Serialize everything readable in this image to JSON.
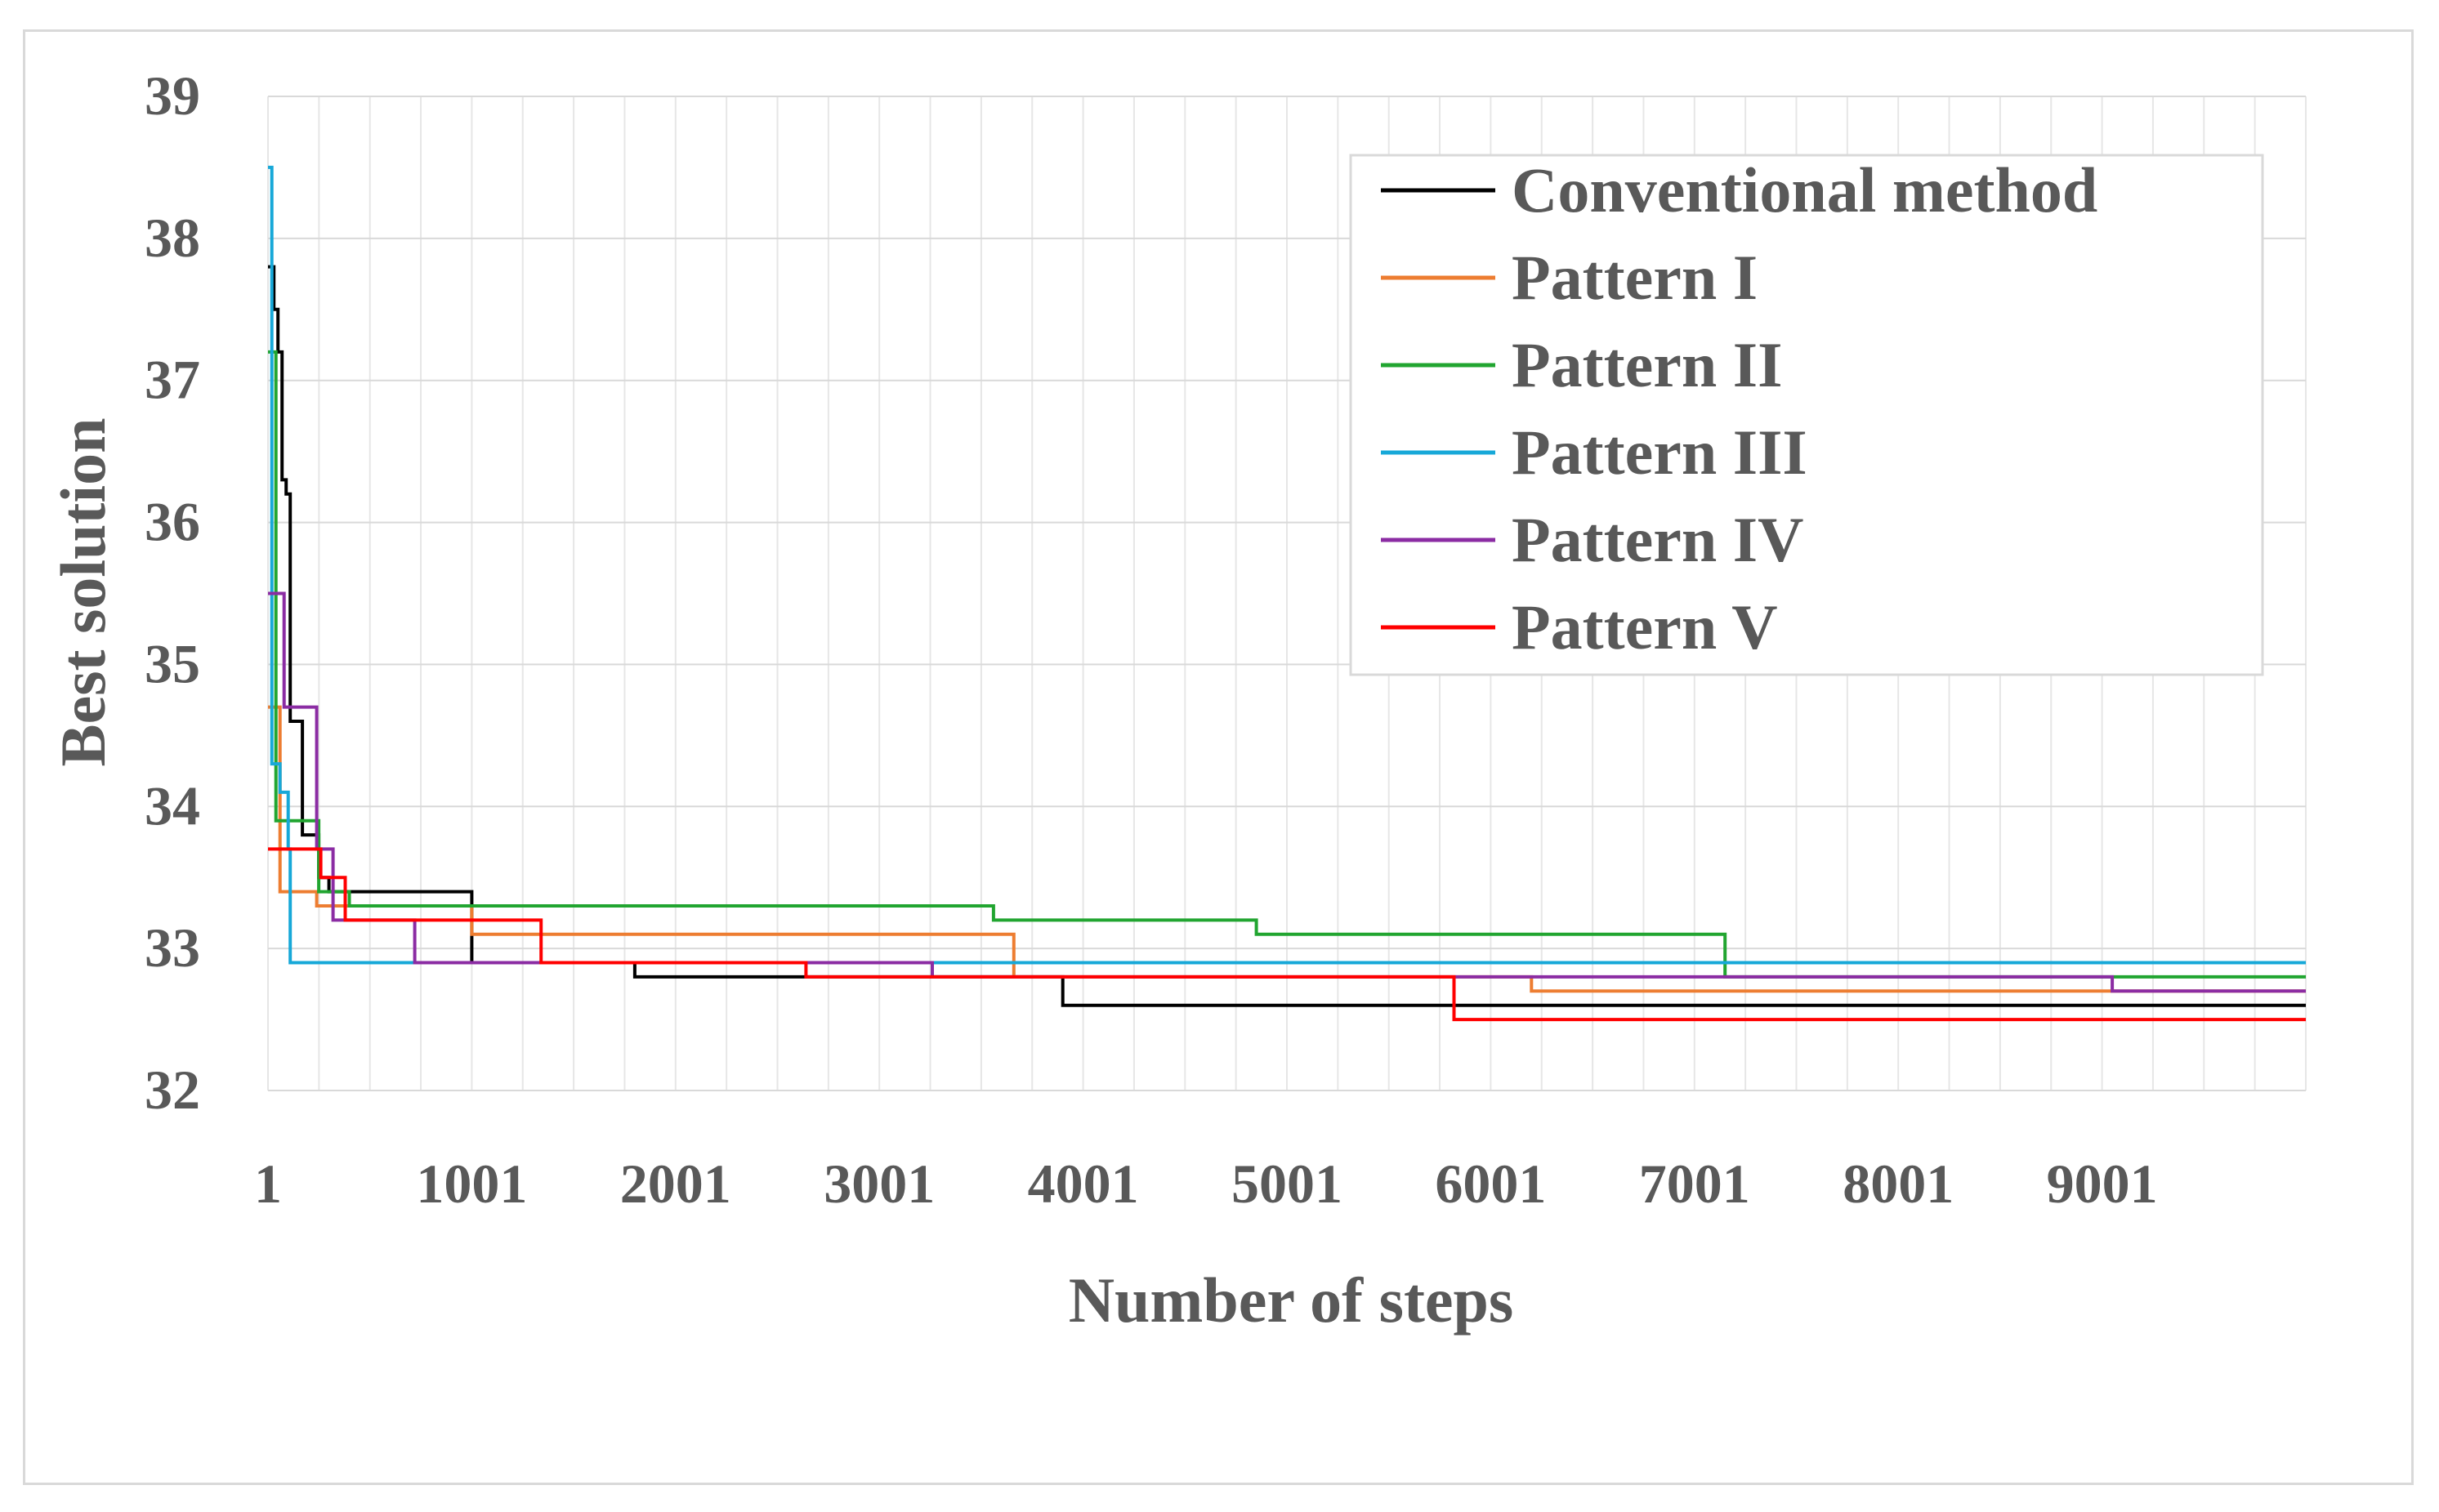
{
  "chart_data": {
    "type": "line",
    "title": "",
    "xlabel": "Number of steps",
    "ylabel": "Best solution",
    "xlim": [
      1,
      10001
    ],
    "ylim": [
      32,
      39
    ],
    "x_ticks": [
      1,
      1001,
      2001,
      3001,
      4001,
      5001,
      6001,
      7001,
      8001,
      9001
    ],
    "x_tick_labels": [
      "1",
      "1001",
      "2001",
      "3001",
      "4001",
      "5001",
      "6001",
      "7001",
      "8001",
      "9001"
    ],
    "y_ticks": [
      32,
      33,
      34,
      35,
      36,
      37,
      38,
      39
    ],
    "y_tick_labels": [
      "32",
      "33",
      "34",
      "35",
      "36",
      "37",
      "38",
      "39"
    ],
    "grid": true,
    "legend_position": "top-right",
    "series": [
      {
        "name": "Conventional method",
        "color": "#000000",
        "points": [
          [
            1,
            37.8
          ],
          [
            30,
            37.8
          ],
          [
            30,
            37.5
          ],
          [
            50,
            37.5
          ],
          [
            50,
            37.2
          ],
          [
            70,
            37.2
          ],
          [
            70,
            36.3
          ],
          [
            90,
            36.3
          ],
          [
            90,
            36.2
          ],
          [
            110,
            36.2
          ],
          [
            110,
            34.6
          ],
          [
            170,
            34.6
          ],
          [
            170,
            33.8
          ],
          [
            250,
            33.8
          ],
          [
            250,
            33.5
          ],
          [
            300,
            33.5
          ],
          [
            300,
            33.4
          ],
          [
            1001,
            33.4
          ],
          [
            1001,
            32.9
          ],
          [
            1801,
            32.9
          ],
          [
            1801,
            32.8
          ],
          [
            3901,
            32.8
          ],
          [
            3901,
            32.6
          ],
          [
            10001,
            32.6
          ]
        ]
      },
      {
        "name": "Pattern I",
        "color": "#ED7D31",
        "points": [
          [
            1,
            34.7
          ],
          [
            60,
            34.7
          ],
          [
            60,
            33.4
          ],
          [
            160,
            33.4
          ],
          [
            160,
            33.4
          ],
          [
            240,
            33.4
          ],
          [
            240,
            33.3
          ],
          [
            1001,
            33.3
          ],
          [
            1001,
            33.1
          ],
          [
            3661,
            33.1
          ],
          [
            3661,
            32.8
          ],
          [
            6201,
            32.8
          ],
          [
            6201,
            32.7
          ],
          [
            10001,
            32.7
          ]
        ]
      },
      {
        "name": "Pattern II",
        "color": "#21A530",
        "points": [
          [
            1,
            37.2
          ],
          [
            40,
            37.2
          ],
          [
            40,
            33.9
          ],
          [
            250,
            33.9
          ],
          [
            250,
            33.4
          ],
          [
            400,
            33.4
          ],
          [
            400,
            33.3
          ],
          [
            3561,
            33.3
          ],
          [
            3561,
            33.2
          ],
          [
            4851,
            33.2
          ],
          [
            4851,
            33.1
          ],
          [
            7151,
            33.1
          ],
          [
            7151,
            32.8
          ],
          [
            10001,
            32.8
          ]
        ]
      },
      {
        "name": "Pattern III",
        "color": "#17A8D8",
        "points": [
          [
            1,
            38.5
          ],
          [
            20,
            38.5
          ],
          [
            20,
            34.3
          ],
          [
            60,
            34.3
          ],
          [
            60,
            34.1
          ],
          [
            100,
            34.1
          ],
          [
            100,
            33.7
          ],
          [
            110,
            33.7
          ],
          [
            110,
            32.9
          ],
          [
            10001,
            32.9
          ]
        ]
      },
      {
        "name": "Pattern IV",
        "color": "#8B2CA3",
        "points": [
          [
            1,
            35.5
          ],
          [
            80,
            35.5
          ],
          [
            80,
            34.7
          ],
          [
            240,
            34.7
          ],
          [
            240,
            33.7
          ],
          [
            320,
            33.7
          ],
          [
            320,
            33.2
          ],
          [
            721,
            33.2
          ],
          [
            721,
            32.9
          ],
          [
            3261,
            32.9
          ],
          [
            3261,
            32.8
          ],
          [
            9051,
            32.8
          ],
          [
            9051,
            32.7
          ],
          [
            10001,
            32.7
          ]
        ]
      },
      {
        "name": "Pattern V",
        "color": "#FF0000",
        "points": [
          [
            1,
            33.7
          ],
          [
            260,
            33.7
          ],
          [
            260,
            33.5
          ],
          [
            380,
            33.5
          ],
          [
            380,
            33.2
          ],
          [
            1341,
            33.2
          ],
          [
            1341,
            32.9
          ],
          [
            2641,
            32.9
          ],
          [
            2641,
            32.8
          ],
          [
            5821,
            32.8
          ],
          [
            5821,
            32.5
          ],
          [
            10001,
            32.5
          ]
        ]
      }
    ]
  }
}
